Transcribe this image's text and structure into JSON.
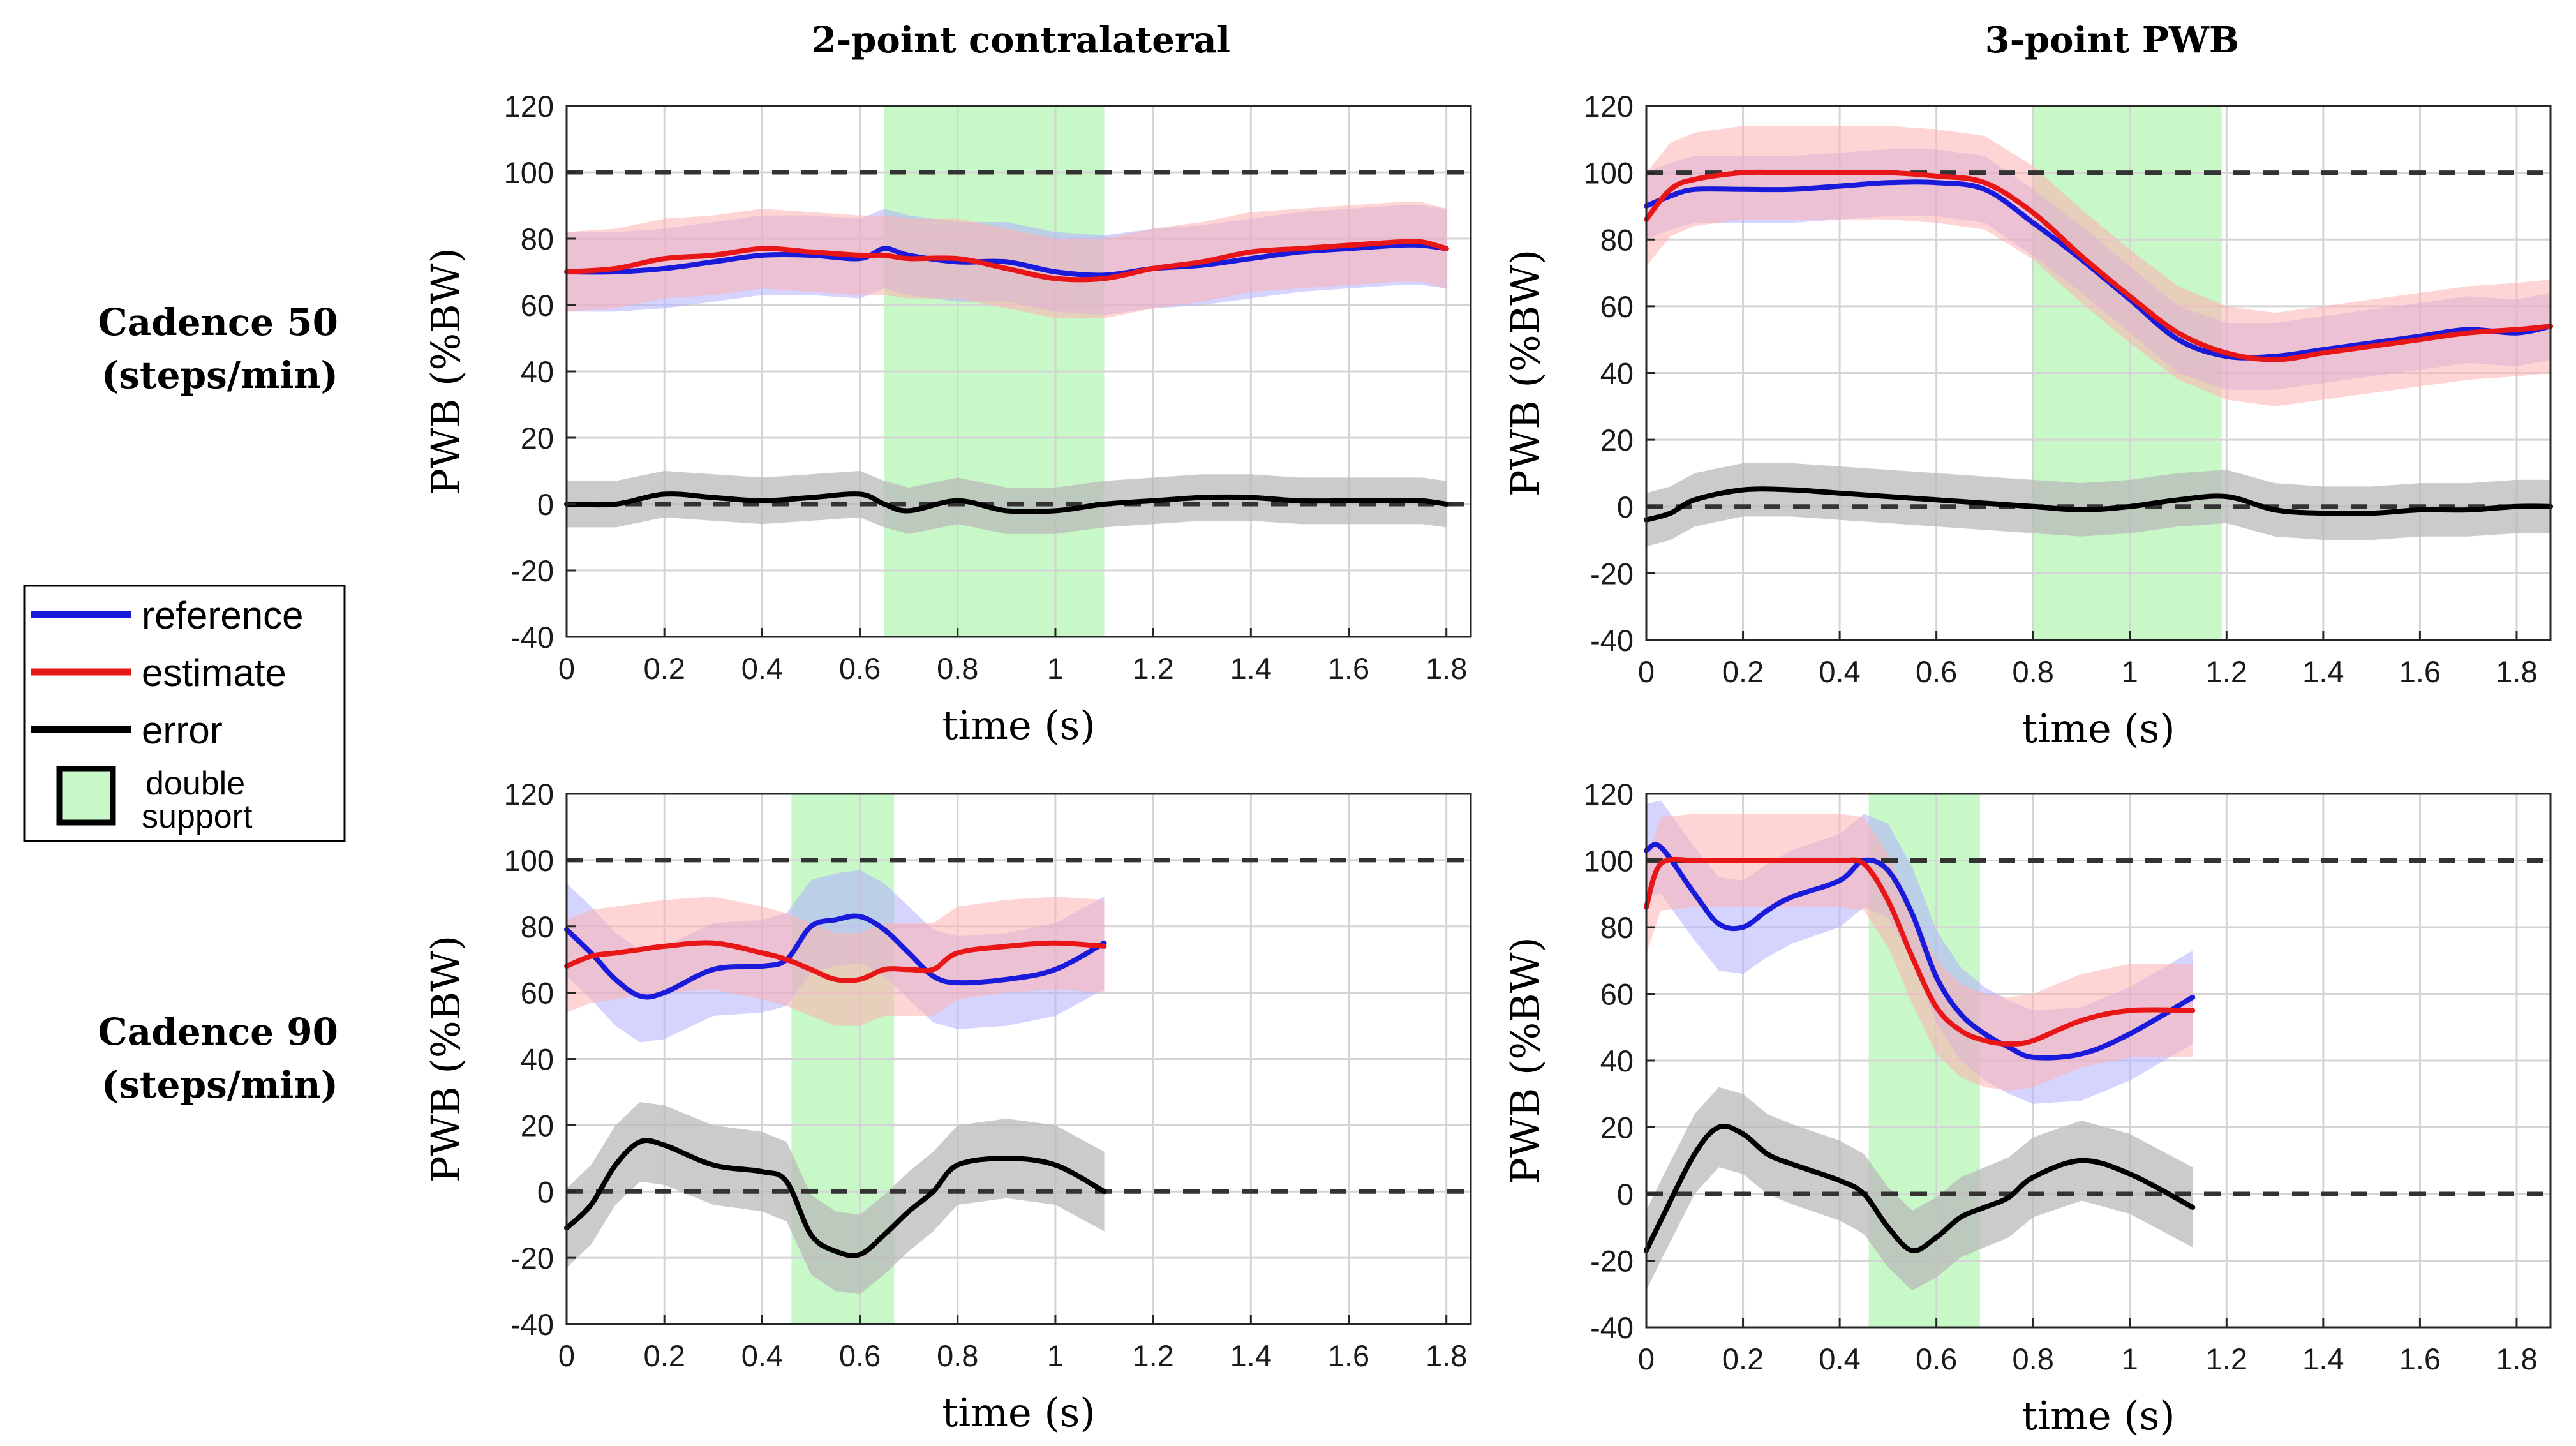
{
  "titles": {
    "col1": "2-point contralateral",
    "col2": "3-point PWB",
    "row1_line1": "Cadence 50",
    "row1_line2": "(steps/min)",
    "row2_line1": "Cadence 90",
    "row2_line2": "(steps/min)"
  },
  "legend": {
    "reference": "reference",
    "estimate": "estimate",
    "error": "error",
    "double_support_line1": "double",
    "double_support_line2": "support"
  },
  "colors": {
    "reference": "#1a1adb",
    "estimate": "#e81616",
    "error": "#000000",
    "double_support": "#c8f7c8",
    "reference_band": "#b0b0ff",
    "estimate_band": "#ffb0b0",
    "error_band": "#b9b9b9"
  },
  "chart_data": [
    {
      "type": "line",
      "panel": "cadence50-2point",
      "xlabel": "time (s)",
      "ylabel": "PWB (%BW)",
      "xlim": [
        0,
        1.85
      ],
      "ylim": [
        -40,
        120
      ],
      "xticks": [
        "0",
        "0.2",
        "0.4",
        "0.6",
        "0.8",
        "1",
        "1.2",
        "1.4",
        "1.6",
        "1.8"
      ],
      "yticks": [
        "-40",
        "-20",
        "0",
        "20",
        "40",
        "60",
        "80",
        "100",
        "120"
      ],
      "grid": true,
      "double_support": [
        0.65,
        1.1
      ],
      "reference_lines": [
        100,
        0
      ],
      "series": [
        {
          "name": "reference",
          "x": [
            0,
            0.1,
            0.2,
            0.3,
            0.4,
            0.5,
            0.6,
            0.65,
            0.7,
            0.8,
            0.9,
            1.0,
            1.1,
            1.2,
            1.3,
            1.4,
            1.5,
            1.6,
            1.7,
            1.75,
            1.8
          ],
          "y": [
            70,
            70,
            71,
            73,
            75,
            75,
            74,
            77,
            75,
            73,
            73,
            70,
            69,
            71,
            72,
            74,
            76,
            77,
            78,
            78,
            77
          ],
          "band": 12
        },
        {
          "name": "estimate",
          "x": [
            0,
            0.1,
            0.2,
            0.3,
            0.4,
            0.5,
            0.6,
            0.65,
            0.7,
            0.8,
            0.9,
            1.0,
            1.1,
            1.2,
            1.3,
            1.4,
            1.5,
            1.6,
            1.7,
            1.75,
            1.8
          ],
          "y": [
            70,
            71,
            74,
            75,
            77,
            76,
            75,
            75,
            74,
            74,
            71,
            68,
            68,
            71,
            73,
            76,
            77,
            78,
            79,
            79,
            77
          ],
          "band": 12
        },
        {
          "name": "error",
          "x": [
            0,
            0.1,
            0.2,
            0.3,
            0.4,
            0.5,
            0.6,
            0.65,
            0.7,
            0.8,
            0.9,
            1.0,
            1.1,
            1.2,
            1.3,
            1.4,
            1.5,
            1.6,
            1.7,
            1.75,
            1.8
          ],
          "y": [
            0,
            0,
            3,
            2,
            1,
            2,
            3,
            0,
            -2,
            1,
            -2,
            -2,
            0,
            1,
            2,
            2,
            1,
            1,
            1,
            1,
            0
          ],
          "band": 7
        }
      ]
    },
    {
      "type": "line",
      "panel": "cadence50-3point",
      "xlabel": "time (s)",
      "ylabel": "PWB (%BW)",
      "xlim": [
        0,
        1.87
      ],
      "ylim": [
        -40,
        120
      ],
      "xticks": [
        "0",
        "0.2",
        "0.4",
        "0.6",
        "0.8",
        "1",
        "1.2",
        "1.4",
        "1.6",
        "1.8"
      ],
      "yticks": [
        "-40",
        "-20",
        "0",
        "20",
        "40",
        "60",
        "80",
        "100",
        "120"
      ],
      "grid": true,
      "double_support": [
        0.8,
        1.19
      ],
      "reference_lines": [
        100,
        0
      ],
      "series": [
        {
          "name": "reference",
          "x": [
            0,
            0.05,
            0.1,
            0.2,
            0.3,
            0.4,
            0.5,
            0.6,
            0.7,
            0.8,
            0.9,
            1.0,
            1.1,
            1.2,
            1.3,
            1.4,
            1.5,
            1.6,
            1.7,
            1.8,
            1.87
          ],
          "y": [
            90,
            93,
            95,
            95,
            95,
            96,
            97,
            97,
            95,
            85,
            74,
            62,
            50,
            45,
            45,
            47,
            49,
            51,
            53,
            52,
            54
          ],
          "band": 10
        },
        {
          "name": "estimate",
          "x": [
            0,
            0.05,
            0.1,
            0.2,
            0.3,
            0.4,
            0.5,
            0.6,
            0.7,
            0.8,
            0.9,
            1.0,
            1.1,
            1.2,
            1.3,
            1.4,
            1.5,
            1.6,
            1.7,
            1.8,
            1.87
          ],
          "y": [
            86,
            95,
            98,
            100,
            100,
            100,
            100,
            99,
            97,
            88,
            75,
            63,
            52,
            46,
            44,
            46,
            48,
            50,
            52,
            53,
            54
          ],
          "band": 14
        },
        {
          "name": "error",
          "x": [
            0,
            0.05,
            0.1,
            0.2,
            0.3,
            0.4,
            0.5,
            0.6,
            0.7,
            0.8,
            0.9,
            1.0,
            1.1,
            1.2,
            1.3,
            1.4,
            1.5,
            1.6,
            1.7,
            1.8,
            1.87
          ],
          "y": [
            -4,
            -2,
            2,
            5,
            5,
            4,
            3,
            2,
            1,
            0,
            -1,
            0,
            2,
            3,
            -1,
            -2,
            -2,
            -1,
            -1,
            0,
            0
          ],
          "band": 8
        }
      ]
    },
    {
      "type": "line",
      "panel": "cadence90-2point",
      "xlabel": "time (s)",
      "ylabel": "PWB (%BW)",
      "xlim": [
        0,
        1.85
      ],
      "ylim": [
        -40,
        120
      ],
      "xticks": [
        "0",
        "0.2",
        "0.4",
        "0.6",
        "0.8",
        "1",
        "1.2",
        "1.4",
        "1.6",
        "1.8"
      ],
      "yticks": [
        "-40",
        "-20",
        "0",
        "20",
        "40",
        "60",
        "80",
        "100",
        "120"
      ],
      "grid": true,
      "double_support": [
        0.46,
        0.67
      ],
      "reference_lines": [
        100,
        0
      ],
      "series": [
        {
          "name": "reference",
          "x": [
            0,
            0.05,
            0.1,
            0.15,
            0.2,
            0.3,
            0.4,
            0.45,
            0.5,
            0.55,
            0.6,
            0.65,
            0.7,
            0.75,
            0.8,
            0.9,
            1.0,
            1.1
          ],
          "y": [
            79,
            72,
            64,
            59,
            60,
            67,
            68,
            70,
            80,
            82,
            83,
            79,
            72,
            65,
            63,
            64,
            67,
            75
          ],
          "band": 14
        },
        {
          "name": "estimate",
          "x": [
            0,
            0.05,
            0.1,
            0.15,
            0.2,
            0.3,
            0.4,
            0.45,
            0.5,
            0.55,
            0.6,
            0.65,
            0.7,
            0.75,
            0.8,
            0.9,
            1.0,
            1.1
          ],
          "y": [
            68,
            71,
            72,
            73,
            74,
            75,
            72,
            70,
            67,
            64,
            64,
            67,
            67,
            67,
            72,
            74,
            75,
            74
          ],
          "band": 14
        },
        {
          "name": "error",
          "x": [
            0,
            0.05,
            0.1,
            0.15,
            0.2,
            0.3,
            0.4,
            0.45,
            0.5,
            0.55,
            0.6,
            0.65,
            0.7,
            0.75,
            0.8,
            0.9,
            1.0,
            1.1
          ],
          "y": [
            -11,
            -4,
            8,
            15,
            14,
            8,
            6,
            3,
            -13,
            -18,
            -19,
            -13,
            -6,
            0,
            8,
            10,
            8,
            0
          ],
          "band": 12
        }
      ]
    },
    {
      "type": "line",
      "panel": "cadence90-3point",
      "xlabel": "time (s)",
      "ylabel": "PWB (%BW)",
      "xlim": [
        0,
        1.87
      ],
      "ylim": [
        -40,
        120
      ],
      "xticks": [
        "0",
        "0.2",
        "0.4",
        "0.6",
        "0.8",
        "1",
        "1.2",
        "1.4",
        "1.6",
        "1.8"
      ],
      "yticks": [
        "-40",
        "-20",
        "0",
        "20",
        "40",
        "60",
        "80",
        "100",
        "120"
      ],
      "grid": true,
      "double_support": [
        0.46,
        0.69
      ],
      "reference_lines": [
        100,
        0
      ],
      "series": [
        {
          "name": "reference",
          "x": [
            0,
            0.03,
            0.1,
            0.15,
            0.2,
            0.25,
            0.3,
            0.4,
            0.45,
            0.5,
            0.55,
            0.6,
            0.65,
            0.7,
            0.75,
            0.8,
            0.9,
            1.0,
            1.13
          ],
          "y": [
            103,
            104,
            90,
            81,
            80,
            85,
            89,
            94,
            100,
            97,
            84,
            65,
            54,
            48,
            44,
            41,
            42,
            48,
            59
          ],
          "band": 14
        },
        {
          "name": "estimate",
          "x": [
            0,
            0.03,
            0.1,
            0.15,
            0.2,
            0.25,
            0.3,
            0.4,
            0.45,
            0.5,
            0.55,
            0.6,
            0.65,
            0.7,
            0.75,
            0.8,
            0.9,
            1.0,
            1.13
          ],
          "y": [
            86,
            99,
            100,
            100,
            100,
            100,
            100,
            100,
            99,
            88,
            71,
            56,
            49,
            46,
            45,
            46,
            52,
            55,
            55
          ],
          "band": 14
        },
        {
          "name": "error",
          "x": [
            0,
            0.03,
            0.1,
            0.15,
            0.2,
            0.25,
            0.3,
            0.4,
            0.45,
            0.5,
            0.55,
            0.6,
            0.65,
            0.7,
            0.75,
            0.8,
            0.9,
            1.0,
            1.13
          ],
          "y": [
            -17,
            -8,
            12,
            20,
            18,
            12,
            9,
            4,
            0,
            -10,
            -17,
            -13,
            -7,
            -4,
            -1,
            5,
            10,
            6,
            -4
          ],
          "band": 12
        }
      ]
    }
  ]
}
